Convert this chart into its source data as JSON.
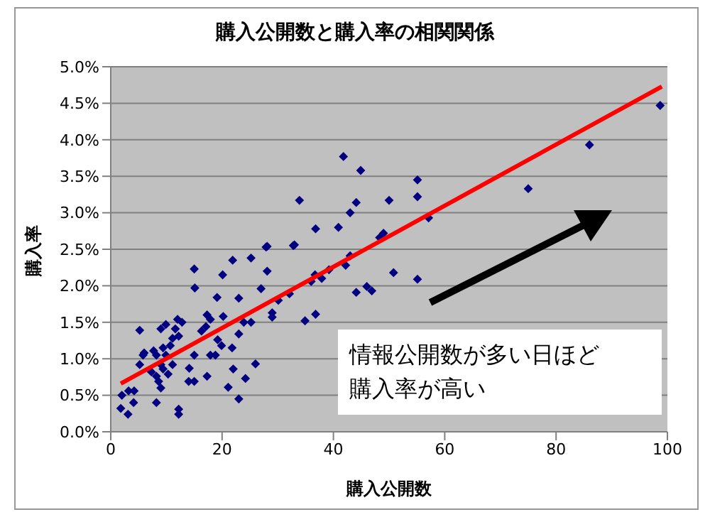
{
  "chart_data": {
    "type": "scatter",
    "title": "購入公開数と購入率の相関関係",
    "xlabel": "購入公開数",
    "ylabel": "購入率",
    "annotations": [
      "情報公開数が多い日ほど購入率が高い"
    ],
    "xlim": [
      0,
      100
    ],
    "xticks": [
      0,
      20,
      40,
      60,
      80,
      100
    ],
    "ylim": [
      0,
      5
    ],
    "yticks": [
      {
        "value": 0,
        "label": "0.0%"
      },
      {
        "value": 0.5,
        "label": "0.5%"
      },
      {
        "value": 1,
        "label": "1.0%"
      },
      {
        "value": 1.5,
        "label": "1.5%"
      },
      {
        "value": 2,
        "label": "2.0%"
      },
      {
        "value": 2.5,
        "label": "2.5%"
      },
      {
        "value": 3,
        "label": "3.0%"
      },
      {
        "value": 3.5,
        "label": "3.5%"
      },
      {
        "value": 4,
        "label": "4.0%"
      },
      {
        "value": 4.5,
        "label": "4.5%"
      },
      {
        "value": 5,
        "label": "5.0%"
      }
    ],
    "grid": "y",
    "series": [
      {
        "marker": "diamond",
        "color": "#000080",
        "x": [
          1.8,
          3.1,
          2.0,
          3.2,
          4.2,
          4.1,
          5.2,
          5.2,
          6.0,
          5.8,
          7.3,
          7.7,
          8.2,
          8.2,
          8.6,
          8.2,
          9.0,
          9.4,
          9.9,
          9.0,
          9.4,
          9.9,
          10.3,
          9.0,
          10.7,
          11.1,
          11.1,
          12.0,
          12.8,
          12.2,
          11.6,
          14.1,
          14.0,
          15.0,
          15.1,
          15.0,
          15.0,
          12.2,
          12.2,
          16.3,
          17.1,
          17.3,
          17.9,
          17.9,
          17.3,
          19.1,
          20.1,
          20.2,
          19.2,
          18.8,
          19.9,
          21.1,
          21.8,
          22.0,
          21.9,
          23.0,
          23.0,
          23.0,
          24.2,
          25.2,
          23.9,
          26.0,
          27.9,
          28.1,
          27.0,
          29.0,
          29.0,
          32.8,
          32.1,
          25.2,
          41.8,
          44.9,
          55.1,
          55.1,
          33.9,
          50.0,
          44.1,
          43.0,
          36.8,
          40.9,
          28.1,
          33.0,
          49.0,
          48.3,
          57.1,
          42.2,
          43.0,
          36.7,
          37.9,
          39.2,
          36.0,
          30.1,
          34.9,
          36.8,
          44.1,
          46.0,
          46.9,
          50.8,
          55.1,
          75,
          86,
          98.7
        ],
        "values": [
          0.32,
          0.24,
          0.5,
          0.56,
          0.56,
          0.4,
          1.39,
          0.92,
          1.08,
          1.05,
          0.82,
          1.11,
          1.05,
          0.76,
          0.69,
          0.4,
          1.41,
          1.15,
          1.47,
          0.92,
          0.86,
          1.05,
          0.79,
          0.6,
          1.18,
          0.92,
          1.28,
          1.54,
          1.5,
          1.31,
          1.41,
          0.87,
          0.69,
          2.23,
          1.97,
          1.05,
          0.69,
          0.31,
          0.24,
          1.38,
          1.44,
          1.6,
          1.54,
          1.05,
          0.76,
          1.84,
          2.15,
          1.58,
          1.26,
          1.05,
          1.18,
          0.61,
          1.15,
          0.86,
          2.35,
          1.83,
          1.34,
          0.45,
          0.73,
          2.38,
          1.5,
          0.93,
          2.53,
          2.2,
          1.96,
          1.63,
          1.57,
          2.55,
          1.89,
          1.5,
          3.77,
          3.58,
          3.45,
          3.22,
          3.17,
          3.17,
          3.14,
          3.0,
          2.78,
          2.8,
          2.54,
          2.56,
          2.72,
          2.66,
          2.93,
          2.28,
          2.41,
          2.15,
          2.1,
          2.22,
          2.06,
          1.8,
          1.52,
          1.61,
          1.91,
          1.99,
          1.93,
          2.18,
          2.09,
          3.33,
          3.93,
          4.47
        ]
      },
      {
        "type": "line",
        "marker": "none",
        "color": "#ff0000",
        "x": [
          1.8,
          99
        ],
        "values": [
          0.66,
          4.73
        ]
      }
    ]
  }
}
